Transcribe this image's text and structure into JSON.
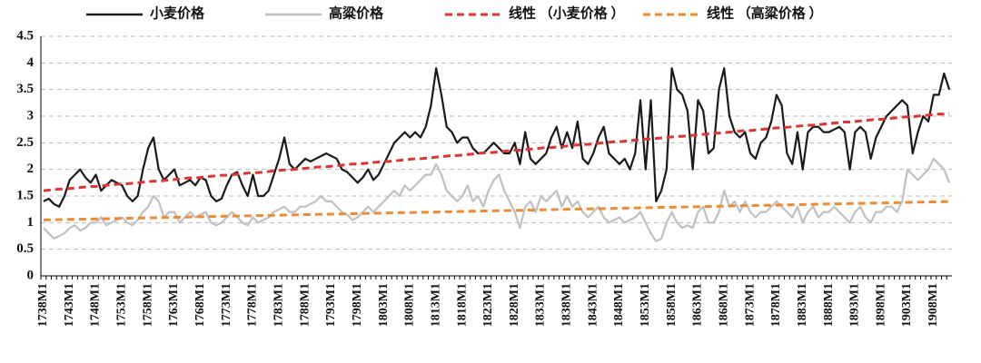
{
  "chart_data": {
    "type": "line",
    "categories": [
      "1738M1",
      null,
      null,
      null,
      null,
      "1743M1",
      null,
      null,
      null,
      null,
      "1748M1",
      null,
      null,
      null,
      null,
      "1753M1",
      null,
      null,
      null,
      null,
      "1758M1",
      null,
      null,
      null,
      null,
      "1763M1",
      null,
      null,
      null,
      null,
      "1768M1",
      null,
      null,
      null,
      null,
      "1773M1",
      null,
      null,
      null,
      null,
      "1778M1",
      null,
      null,
      null,
      null,
      "1783M1",
      null,
      null,
      null,
      null,
      "1788M1",
      null,
      null,
      null,
      null,
      "1793M1",
      null,
      null,
      null,
      null,
      "1798M1",
      null,
      null,
      null,
      null,
      "1803M1",
      null,
      null,
      null,
      null,
      "1808M1",
      null,
      null,
      null,
      null,
      "1813M1",
      null,
      null,
      null,
      null,
      "1818M1",
      null,
      null,
      null,
      null,
      "1823M1",
      null,
      null,
      null,
      null,
      "1828M1",
      null,
      null,
      null,
      null,
      "1833M1",
      null,
      null,
      null,
      null,
      "1838M1",
      null,
      null,
      null,
      null,
      "1843M1",
      null,
      null,
      null,
      null,
      "1848M1",
      null,
      null,
      null,
      null,
      "1853M1",
      null,
      null,
      null,
      null,
      "1858M1",
      null,
      null,
      null,
      null,
      "1863M1",
      null,
      null,
      null,
      null,
      "1868M1",
      null,
      null,
      null,
      null,
      "1873M1",
      null,
      null,
      null,
      null,
      "1878M1",
      null,
      null,
      null,
      null,
      "1883M1",
      null,
      null,
      null,
      null,
      "1888M1",
      null,
      null,
      null,
      null,
      "1893M1",
      null,
      null,
      null,
      null,
      "1898M1",
      null,
      null,
      null,
      null,
      "1903M1",
      null,
      null,
      null,
      null,
      "1908M1",
      null,
      null,
      null
    ],
    "series": [
      {
        "name": "小麦价格",
        "color": "#1a1a1a",
        "dashed": false,
        "values": [
          1.4,
          1.45,
          1.35,
          1.3,
          1.5,
          1.8,
          1.9,
          2.0,
          1.85,
          1.75,
          1.9,
          1.6,
          1.7,
          1.8,
          1.75,
          1.7,
          1.5,
          1.4,
          1.5,
          2.0,
          2.4,
          2.6,
          2.0,
          1.8,
          1.9,
          2.0,
          1.7,
          1.75,
          1.8,
          1.7,
          1.85,
          1.8,
          1.5,
          1.4,
          1.45,
          1.7,
          1.9,
          1.95,
          1.7,
          1.5,
          1.9,
          1.5,
          1.5,
          1.6,
          1.9,
          2.2,
          2.6,
          2.1,
          2.0,
          2.1,
          2.2,
          2.15,
          2.2,
          2.25,
          2.3,
          2.25,
          2.2,
          2.0,
          1.95,
          1.85,
          1.75,
          1.85,
          2.0,
          1.8,
          1.9,
          2.1,
          2.3,
          2.5,
          2.6,
          2.7,
          2.6,
          2.7,
          2.6,
          2.8,
          3.2,
          3.9,
          3.4,
          2.8,
          2.7,
          2.5,
          2.6,
          2.6,
          2.4,
          2.3,
          2.3,
          2.4,
          2.5,
          2.4,
          2.3,
          2.3,
          2.5,
          2.1,
          2.7,
          2.2,
          2.1,
          2.2,
          2.3,
          2.6,
          2.8,
          2.4,
          2.7,
          2.4,
          2.9,
          2.2,
          2.1,
          2.3,
          2.6,
          2.8,
          2.3,
          2.2,
          2.1,
          2.2,
          2.0,
          2.3,
          3.3,
          2.0,
          3.3,
          1.4,
          1.6,
          2.0,
          3.9,
          3.5,
          3.4,
          3.1,
          2.0,
          3.3,
          3.1,
          2.3,
          2.4,
          3.5,
          3.9,
          3.0,
          2.7,
          2.6,
          2.7,
          2.3,
          2.2,
          2.5,
          2.6,
          2.9,
          3.4,
          3.2,
          2.3,
          2.1,
          2.7,
          2.0,
          2.7,
          2.8,
          2.8,
          2.7,
          2.7,
          2.75,
          2.8,
          2.7,
          2.0,
          2.7,
          2.8,
          2.7,
          2.2,
          2.6,
          2.8,
          3.0,
          3.1,
          3.2,
          3.3,
          3.2,
          2.3,
          2.7,
          3.0,
          2.9,
          3.4,
          3.4,
          3.8,
          3.5
        ]
      },
      {
        "name": "高粱价格",
        "color": "#c0c0c0",
        "dashed": false,
        "values": [
          0.9,
          0.8,
          0.7,
          0.75,
          0.8,
          0.9,
          0.95,
          0.85,
          0.9,
          1.0,
          1.0,
          1.1,
          0.95,
          1.0,
          1.05,
          1.1,
          1.0,
          0.95,
          1.05,
          1.2,
          1.3,
          1.5,
          1.4,
          1.1,
          1.2,
          1.2,
          1.0,
          1.1,
          1.2,
          1.1,
          1.15,
          1.2,
          1.0,
          0.95,
          1.0,
          1.1,
          1.2,
          1.1,
          1.0,
          0.95,
          1.1,
          1.0,
          1.05,
          1.1,
          1.2,
          1.25,
          1.3,
          1.2,
          1.2,
          1.3,
          1.3,
          1.35,
          1.4,
          1.5,
          1.4,
          1.4,
          1.3,
          1.2,
          1.15,
          1.05,
          1.1,
          1.2,
          1.3,
          1.2,
          1.3,
          1.4,
          1.5,
          1.6,
          1.5,
          1.7,
          1.6,
          1.7,
          1.8,
          1.9,
          1.9,
          2.1,
          1.9,
          1.6,
          1.5,
          1.4,
          1.5,
          1.7,
          1.4,
          1.5,
          1.3,
          1.6,
          1.8,
          1.9,
          1.6,
          1.4,
          1.2,
          0.9,
          1.3,
          1.4,
          1.2,
          1.5,
          1.4,
          1.5,
          1.6,
          1.3,
          1.5,
          1.3,
          1.4,
          1.2,
          1.1,
          1.2,
          1.3,
          1.1,
          1.0,
          1.05,
          1.1,
          1.0,
          1.05,
          1.1,
          1.2,
          1.0,
          0.8,
          0.65,
          0.7,
          1.0,
          1.2,
          1.0,
          0.9,
          0.95,
          0.9,
          1.2,
          1.3,
          1.0,
          1.0,
          1.2,
          1.6,
          1.3,
          1.4,
          1.2,
          1.4,
          1.2,
          1.1,
          1.2,
          1.2,
          1.3,
          1.4,
          1.3,
          1.2,
          1.1,
          1.3,
          1.0,
          1.2,
          1.3,
          1.1,
          1.2,
          1.2,
          1.3,
          1.2,
          1.1,
          1.0,
          1.2,
          1.3,
          1.1,
          1.0,
          1.2,
          1.2,
          1.3,
          1.3,
          1.2,
          1.4,
          2.0,
          1.9,
          1.8,
          1.9,
          2.0,
          2.2,
          2.1,
          2.0,
          1.75
        ]
      },
      {
        "name": "线性 （小麦价格 ）",
        "color": "#e23232",
        "dashed": true,
        "values": [
          1.6,
          1.61,
          1.62,
          1.63,
          1.63,
          1.64,
          1.65,
          1.66,
          1.67,
          1.68,
          1.68,
          1.69,
          1.7,
          1.71,
          1.72,
          1.73,
          1.73,
          1.74,
          1.75,
          1.76,
          1.77,
          1.78,
          1.78,
          1.79,
          1.8,
          1.81,
          1.82,
          1.83,
          1.84,
          1.84,
          1.85,
          1.86,
          1.87,
          1.88,
          1.89,
          1.89,
          1.9,
          1.91,
          1.92,
          1.93,
          1.94,
          1.94,
          1.95,
          1.96,
          1.97,
          1.98,
          1.99,
          1.99,
          2.0,
          2.01,
          2.02,
          2.03,
          2.04,
          2.05,
          2.05,
          2.06,
          2.07,
          2.08,
          2.09,
          2.1,
          2.1,
          2.11,
          2.12,
          2.13,
          2.14,
          2.15,
          2.15,
          2.16,
          2.17,
          2.18,
          2.19,
          2.2,
          2.2,
          2.21,
          2.22,
          2.23,
          2.24,
          2.25,
          2.26,
          2.26,
          2.27,
          2.28,
          2.29,
          2.3,
          2.31,
          2.31,
          2.32,
          2.33,
          2.34,
          2.35,
          2.36,
          2.36,
          2.37,
          2.38,
          2.39,
          2.4,
          2.41,
          2.41,
          2.42,
          2.43,
          2.44,
          2.45,
          2.46,
          2.47,
          2.47,
          2.48,
          2.49,
          2.5,
          2.51,
          2.52,
          2.52,
          2.53,
          2.54,
          2.55,
          2.56,
          2.57,
          2.57,
          2.58,
          2.59,
          2.6,
          2.61,
          2.62,
          2.62,
          2.63,
          2.64,
          2.65,
          2.66,
          2.67,
          2.68,
          2.68,
          2.69,
          2.7,
          2.71,
          2.72,
          2.73,
          2.73,
          2.74,
          2.75,
          2.76,
          2.77,
          2.78,
          2.78,
          2.79,
          2.8,
          2.81,
          2.82,
          2.83,
          2.83,
          2.84,
          2.85,
          2.86,
          2.87,
          2.88,
          2.89,
          2.89,
          2.9,
          2.91,
          2.92,
          2.93,
          2.94,
          2.94,
          2.95,
          2.96,
          2.97,
          2.98,
          2.99,
          2.99,
          3.0,
          3.01,
          3.02,
          3.03,
          3.04,
          3.04,
          3.05
        ]
      },
      {
        "name": "线性 （高粱价格 ）",
        "color": "#f08a30",
        "dashed": true,
        "values": [
          1.05,
          1.052,
          1.054,
          1.056,
          1.058,
          1.06,
          1.062,
          1.064,
          1.066,
          1.068,
          1.07,
          1.072,
          1.074,
          1.076,
          1.078,
          1.08,
          1.082,
          1.084,
          1.086,
          1.088,
          1.09,
          1.092,
          1.094,
          1.096,
          1.098,
          1.1,
          1.102,
          1.104,
          1.106,
          1.108,
          1.11,
          1.112,
          1.114,
          1.116,
          1.118,
          1.12,
          1.122,
          1.124,
          1.126,
          1.128,
          1.13,
          1.132,
          1.134,
          1.136,
          1.138,
          1.14,
          1.142,
          1.144,
          1.146,
          1.148,
          1.15,
          1.152,
          1.154,
          1.156,
          1.158,
          1.16,
          1.162,
          1.164,
          1.166,
          1.168,
          1.17,
          1.172,
          1.174,
          1.176,
          1.178,
          1.18,
          1.182,
          1.184,
          1.186,
          1.188,
          1.19,
          1.192,
          1.194,
          1.196,
          1.198,
          1.2,
          1.202,
          1.204,
          1.206,
          1.208,
          1.21,
          1.212,
          1.214,
          1.216,
          1.218,
          1.22,
          1.222,
          1.224,
          1.226,
          1.228,
          1.23,
          1.232,
          1.234,
          1.236,
          1.238,
          1.24,
          1.242,
          1.244,
          1.246,
          1.248,
          1.25,
          1.252,
          1.254,
          1.256,
          1.258,
          1.26,
          1.262,
          1.264,
          1.266,
          1.268,
          1.27,
          1.272,
          1.274,
          1.276,
          1.278,
          1.28,
          1.282,
          1.284,
          1.286,
          1.288,
          1.29,
          1.292,
          1.294,
          1.296,
          1.298,
          1.3,
          1.302,
          1.304,
          1.306,
          1.308,
          1.31,
          1.312,
          1.314,
          1.316,
          1.318,
          1.32,
          1.322,
          1.324,
          1.326,
          1.328,
          1.33,
          1.332,
          1.334,
          1.336,
          1.338,
          1.34,
          1.342,
          1.344,
          1.346,
          1.348,
          1.35,
          1.352,
          1.354,
          1.356,
          1.358,
          1.36,
          1.362,
          1.364,
          1.366,
          1.368,
          1.37,
          1.372,
          1.374,
          1.376,
          1.378,
          1.38,
          1.382,
          1.384,
          1.386,
          1.388,
          1.39,
          1.392,
          1.394,
          1.396
        ]
      }
    ],
    "ylim": [
      0,
      4.5
    ],
    "yticks": [
      0,
      0.5,
      1,
      1.5,
      2,
      2.5,
      3,
      3.5,
      4,
      4.5
    ],
    "grid": true,
    "legend": "top"
  }
}
